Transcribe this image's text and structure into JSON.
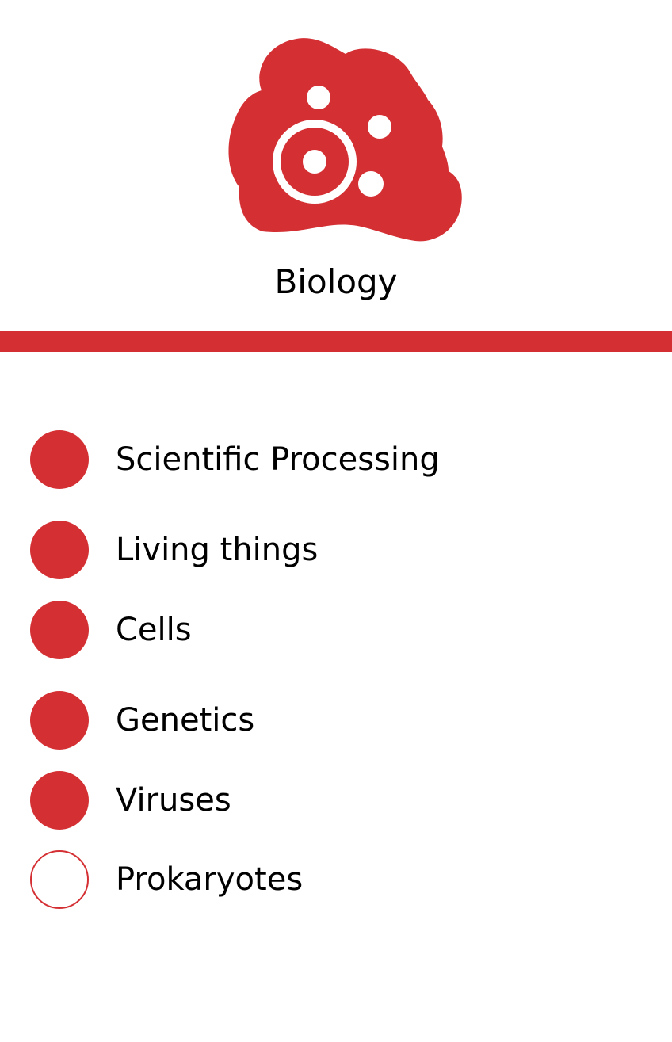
{
  "header": {
    "title": "Biology",
    "icon": "cell-icon"
  },
  "colors": {
    "accent": "#d43034",
    "background": "#ffffff",
    "text": "#000000"
  },
  "topics": [
    {
      "label": "Scientific Processing",
      "status": "completed"
    },
    {
      "label": "Living things",
      "status": "completed"
    },
    {
      "label": "Cells",
      "status": "completed"
    },
    {
      "label": "Genetics",
      "status": "completed"
    },
    {
      "label": "Viruses",
      "status": "completed"
    },
    {
      "label": "Prokaryotes",
      "status": "incomplete"
    }
  ]
}
